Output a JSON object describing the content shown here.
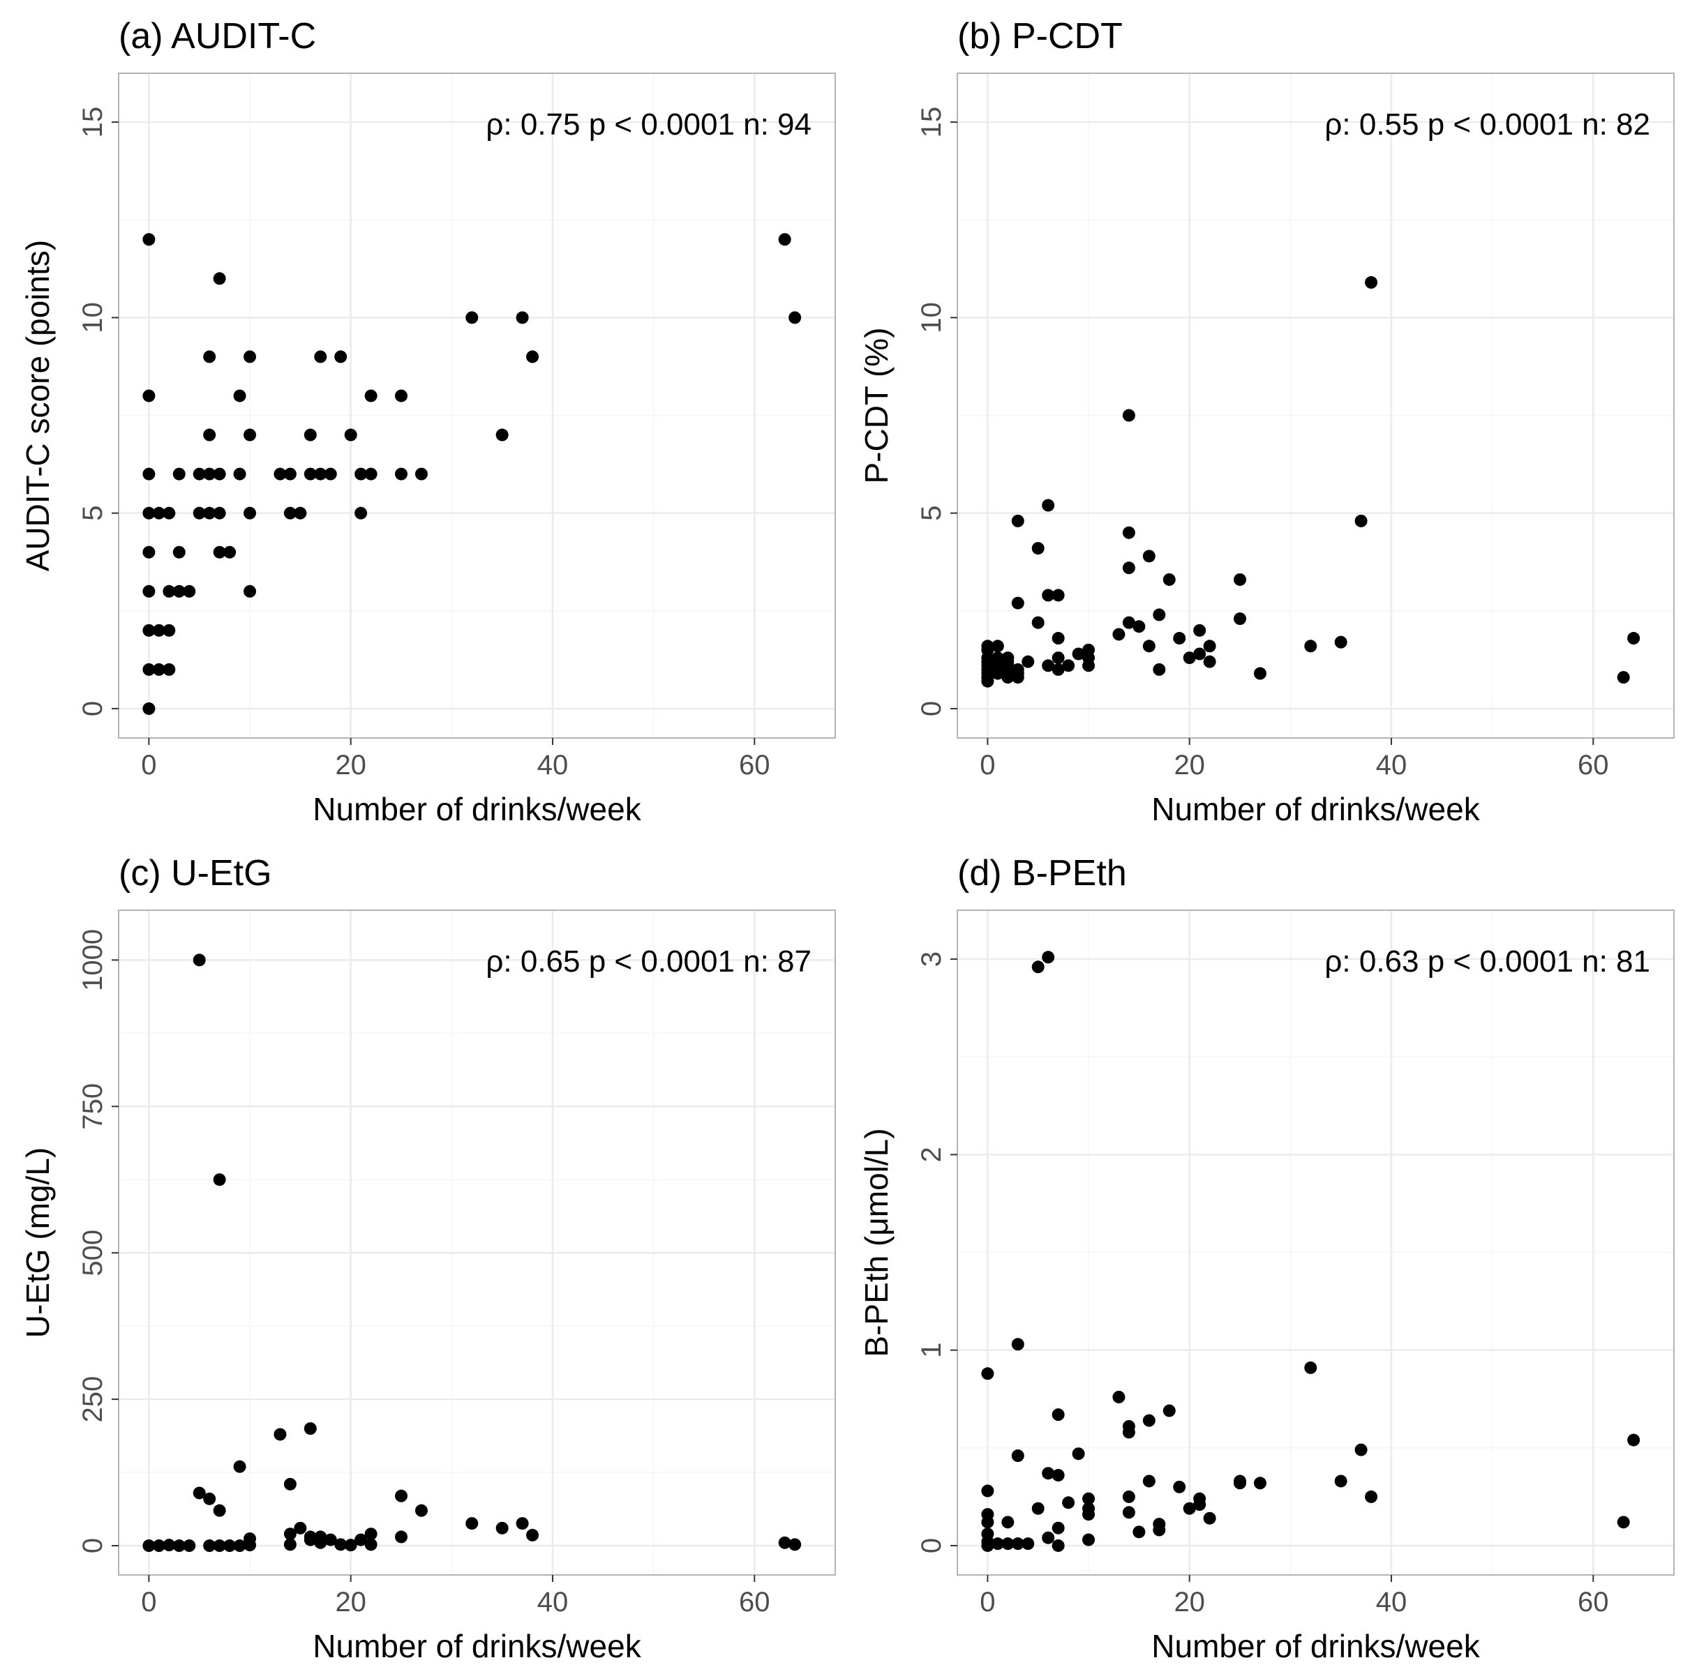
{
  "figure": {
    "colors": {
      "point": "#000000",
      "grid_major": "#ebebeb",
      "grid_minor": "#f5f5f5",
      "border": "#b3b3b3",
      "tick_text": "#4d4d4d"
    }
  },
  "chart_data": [
    {
      "type": "scatter",
      "title": "(a) AUDIT-C",
      "xlabel": "Number of drinks/week",
      "ylabel": "AUDIT-C score (points)",
      "annotation": "ρ: 0.75  p < 0.0001  n: 94",
      "xlim": [
        -3,
        68
      ],
      "ylim": [
        -0.75,
        16.25
      ],
      "xticks": [
        0,
        20,
        40,
        60
      ],
      "xtick_labels": [
        "0",
        "20",
        "40",
        "60"
      ],
      "xminor": [
        10,
        30,
        50
      ],
      "yticks": [
        0,
        5,
        10,
        15
      ],
      "ytick_labels": [
        "0",
        "5",
        "10",
        "15"
      ],
      "yminor": [
        2.5,
        7.5,
        12.5
      ],
      "points": [
        [
          0,
          12
        ],
        [
          0,
          8
        ],
        [
          0,
          6
        ],
        [
          0,
          5
        ],
        [
          0,
          4
        ],
        [
          0,
          3
        ],
        [
          0,
          2
        ],
        [
          0,
          1
        ],
        [
          0,
          0
        ],
        [
          1,
          5
        ],
        [
          1,
          2
        ],
        [
          1,
          1
        ],
        [
          2,
          5
        ],
        [
          2,
          2
        ],
        [
          2,
          1
        ],
        [
          2,
          3
        ],
        [
          3,
          6
        ],
        [
          3,
          4
        ],
        [
          3,
          3
        ],
        [
          4,
          3
        ],
        [
          5,
          6
        ],
        [
          5,
          5
        ],
        [
          6,
          9
        ],
        [
          6,
          7
        ],
        [
          6,
          6
        ],
        [
          6,
          5
        ],
        [
          7,
          11
        ],
        [
          7,
          6
        ],
        [
          7,
          5
        ],
        [
          7,
          4
        ],
        [
          8,
          4
        ],
        [
          9,
          8
        ],
        [
          9,
          6
        ],
        [
          10,
          9
        ],
        [
          10,
          7
        ],
        [
          10,
          5
        ],
        [
          10,
          3
        ],
        [
          13,
          6
        ],
        [
          14,
          6
        ],
        [
          14,
          5
        ],
        [
          15,
          5
        ],
        [
          16,
          7
        ],
        [
          16,
          6
        ],
        [
          17,
          9
        ],
        [
          17,
          6
        ],
        [
          18,
          6
        ],
        [
          19,
          9
        ],
        [
          20,
          7
        ],
        [
          21,
          6
        ],
        [
          21,
          5
        ],
        [
          22,
          8
        ],
        [
          22,
          6
        ],
        [
          25,
          8
        ],
        [
          25,
          6
        ],
        [
          27,
          6
        ],
        [
          32,
          10
        ],
        [
          35,
          7
        ],
        [
          37,
          10
        ],
        [
          38,
          9
        ],
        [
          63,
          12
        ],
        [
          64,
          10
        ]
      ]
    },
    {
      "type": "scatter",
      "title": "(b) P-CDT",
      "xlabel": "Number of drinks/week",
      "ylabel": "P-CDT (%)",
      "annotation": "ρ: 0.55  p < 0.0001  n: 82",
      "xlim": [
        -3,
        68
      ],
      "ylim": [
        -0.75,
        16.25
      ],
      "xticks": [
        0,
        20,
        40,
        60
      ],
      "xtick_labels": [
        "0",
        "20",
        "40",
        "60"
      ],
      "xminor": [
        10,
        30,
        50
      ],
      "yticks": [
        0,
        5,
        10,
        15
      ],
      "ytick_labels": [
        "0",
        "5",
        "10",
        "15"
      ],
      "yminor": [
        2.5,
        7.5,
        12.5
      ],
      "points": [
        [
          0,
          1.6
        ],
        [
          0,
          1.5
        ],
        [
          0,
          1.3
        ],
        [
          0,
          1.2
        ],
        [
          0,
          1.1
        ],
        [
          0,
          1.0
        ],
        [
          0,
          0.9
        ],
        [
          0,
          0.8
        ],
        [
          0,
          0.7
        ],
        [
          1,
          1.6
        ],
        [
          1,
          1.3
        ],
        [
          1,
          1.2
        ],
        [
          1,
          1.0
        ],
        [
          1,
          0.9
        ],
        [
          2,
          1.3
        ],
        [
          2,
          1.2
        ],
        [
          2,
          1.1
        ],
        [
          2,
          1.0
        ],
        [
          2,
          0.8
        ],
        [
          3,
          4.8
        ],
        [
          3,
          2.7
        ],
        [
          3,
          1.0
        ],
        [
          3,
          0.9
        ],
        [
          3,
          0.8
        ],
        [
          4,
          1.2
        ],
        [
          5,
          4.1
        ],
        [
          5,
          2.2
        ],
        [
          6,
          5.2
        ],
        [
          6,
          2.9
        ],
        [
          6,
          1.1
        ],
        [
          7,
          2.9
        ],
        [
          7,
          1.8
        ],
        [
          7,
          1.3
        ],
        [
          7,
          1.0
        ],
        [
          8,
          1.1
        ],
        [
          9,
          1.4
        ],
        [
          10,
          1.5
        ],
        [
          10,
          1.3
        ],
        [
          10,
          1.1
        ],
        [
          13,
          1.9
        ],
        [
          14,
          7.5
        ],
        [
          14,
          4.5
        ],
        [
          14,
          3.6
        ],
        [
          14,
          2.2
        ],
        [
          15,
          2.1
        ],
        [
          16,
          3.9
        ],
        [
          16,
          1.6
        ],
        [
          17,
          2.4
        ],
        [
          17,
          1.0
        ],
        [
          18,
          3.3
        ],
        [
          19,
          1.8
        ],
        [
          20,
          1.3
        ],
        [
          21,
          2.0
        ],
        [
          21,
          1.4
        ],
        [
          22,
          1.6
        ],
        [
          22,
          1.2
        ],
        [
          25,
          3.3
        ],
        [
          25,
          2.3
        ],
        [
          27,
          0.9
        ],
        [
          32,
          1.6
        ],
        [
          35,
          1.7
        ],
        [
          37,
          4.8
        ],
        [
          38,
          10.9
        ],
        [
          63,
          0.8
        ],
        [
          64,
          1.8
        ]
      ]
    },
    {
      "type": "scatter",
      "title": "(c) U-EtG",
      "xlabel": "Number of drinks/week",
      "ylabel": "U-EtG (mg/L)",
      "annotation": "ρ: 0.65  p < 0.0001  n: 87",
      "xlim": [
        -3,
        68
      ],
      "ylim": [
        -50,
        1085
      ],
      "xticks": [
        0,
        20,
        40,
        60
      ],
      "xtick_labels": [
        "0",
        "20",
        "40",
        "60"
      ],
      "xminor": [
        10,
        30,
        50
      ],
      "yticks": [
        0,
        250,
        500,
        750,
        1000
      ],
      "ytick_labels": [
        "0",
        "250",
        "500",
        "750",
        "1000"
      ],
      "yminor": [
        125,
        375,
        625,
        875
      ],
      "points": [
        [
          0,
          0
        ],
        [
          1,
          0
        ],
        [
          2,
          1
        ],
        [
          3,
          0
        ],
        [
          4,
          0
        ],
        [
          5,
          1000
        ],
        [
          5,
          90
        ],
        [
          6,
          80
        ],
        [
          6,
          0
        ],
        [
          7,
          625
        ],
        [
          7,
          60
        ],
        [
          7,
          0
        ],
        [
          8,
          0
        ],
        [
          9,
          135
        ],
        [
          9,
          0
        ],
        [
          10,
          12
        ],
        [
          10,
          1
        ],
        [
          13,
          190
        ],
        [
          14,
          105
        ],
        [
          14,
          20
        ],
        [
          14,
          2
        ],
        [
          15,
          30
        ],
        [
          16,
          200
        ],
        [
          16,
          15
        ],
        [
          16,
          10
        ],
        [
          17,
          15
        ],
        [
          17,
          5
        ],
        [
          18,
          10
        ],
        [
          19,
          2
        ],
        [
          20,
          1
        ],
        [
          21,
          10
        ],
        [
          22,
          20
        ],
        [
          22,
          2
        ],
        [
          25,
          85
        ],
        [
          25,
          15
        ],
        [
          27,
          60
        ],
        [
          32,
          38
        ],
        [
          35,
          30
        ],
        [
          37,
          38
        ],
        [
          38,
          18
        ],
        [
          63,
          5
        ],
        [
          64,
          2
        ]
      ]
    },
    {
      "type": "scatter",
      "title": "(d) B-PEth",
      "xlabel": "Number of drinks/week",
      "ylabel": "B-PEth (μmol/L)",
      "annotation": "ρ: 0.63  p < 0.0001  n: 81",
      "xlim": [
        -3,
        68
      ],
      "ylim": [
        -0.15,
        3.25
      ],
      "xticks": [
        0,
        20,
        40,
        60
      ],
      "xtick_labels": [
        "0",
        "20",
        "40",
        "60"
      ],
      "xminor": [
        10,
        30,
        50
      ],
      "yticks": [
        0,
        1,
        2,
        3
      ],
      "ytick_labels": [
        "0",
        "1",
        "2",
        "3"
      ],
      "yminor": [
        0.5,
        1.5,
        2.5
      ],
      "points": [
        [
          0,
          0.88
        ],
        [
          0,
          0.28
        ],
        [
          0,
          0.16
        ],
        [
          0,
          0.12
        ],
        [
          0,
          0.06
        ],
        [
          0,
          0.02
        ],
        [
          0,
          0.0
        ],
        [
          1,
          0.01
        ],
        [
          2,
          0.12
        ],
        [
          2,
          0.01
        ],
        [
          3,
          1.03
        ],
        [
          3,
          0.46
        ],
        [
          3,
          0.01
        ],
        [
          4,
          0.01
        ],
        [
          5,
          2.96
        ],
        [
          5,
          0.19
        ],
        [
          6,
          3.01
        ],
        [
          6,
          0.37
        ],
        [
          6,
          0.04
        ],
        [
          7,
          0.67
        ],
        [
          7,
          0.36
        ],
        [
          7,
          0.09
        ],
        [
          7,
          0.0
        ],
        [
          8,
          0.22
        ],
        [
          9,
          0.47
        ],
        [
          10,
          0.24
        ],
        [
          10,
          0.19
        ],
        [
          10,
          0.16
        ],
        [
          10,
          0.03
        ],
        [
          13,
          0.76
        ],
        [
          14,
          0.61
        ],
        [
          14,
          0.58
        ],
        [
          14,
          0.25
        ],
        [
          14,
          0.17
        ],
        [
          15,
          0.07
        ],
        [
          16,
          0.64
        ],
        [
          16,
          0.33
        ],
        [
          17,
          0.11
        ],
        [
          17,
          0.08
        ],
        [
          18,
          0.69
        ],
        [
          19,
          0.3
        ],
        [
          20,
          0.19
        ],
        [
          21,
          0.24
        ],
        [
          21,
          0.21
        ],
        [
          22,
          0.14
        ],
        [
          25,
          0.33
        ],
        [
          25,
          0.32
        ],
        [
          27,
          0.32
        ],
        [
          32,
          0.91
        ],
        [
          35,
          0.33
        ],
        [
          37,
          0.49
        ],
        [
          38,
          0.25
        ],
        [
          63,
          0.12
        ],
        [
          64,
          0.54
        ]
      ]
    }
  ]
}
